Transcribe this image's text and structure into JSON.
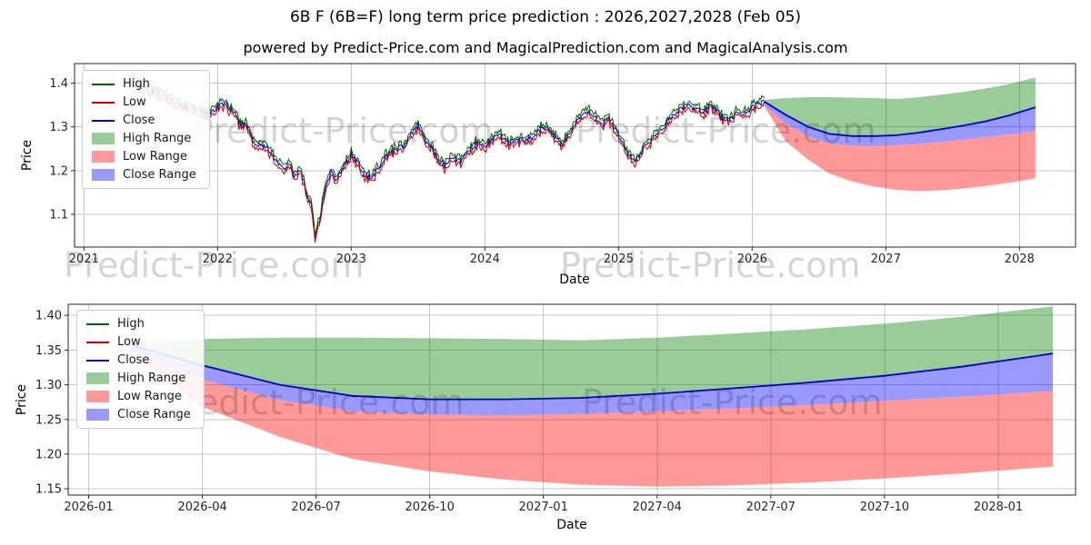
{
  "title": "6B F (6B=F) long term price prediction : 2026,2027,2028 (Feb 05)",
  "subtitle": "powered by Predict-Price.com and MagicalPrediction.com and MagicalAnalysis.com",
  "watermark": "Predict-Price.com",
  "colors": {
    "high": "#006400",
    "low": "#cc0000",
    "close": "#0000cd",
    "high_range": "rgba(0,128,0,0.4)",
    "low_range": "rgba(255,0,0,0.4)",
    "close_range": "rgba(0,0,255,0.4)",
    "grid": "#c6c6c6",
    "axis": "#262626"
  },
  "legend": [
    {
      "label": "High",
      "type": "line",
      "color": "high"
    },
    {
      "label": "Low",
      "type": "line",
      "color": "low"
    },
    {
      "label": "Close",
      "type": "line",
      "color": "close"
    },
    {
      "label": "High Range",
      "type": "patch",
      "color": "high_range"
    },
    {
      "label": "Low Range",
      "type": "patch",
      "color": "low_range"
    },
    {
      "label": "Close Range",
      "type": "patch",
      "color": "close_range"
    }
  ],
  "chart_data": [
    {
      "type": "line",
      "title": "",
      "xlabel": "Date",
      "ylabel": "Price",
      "grid": true,
      "legend_position": "upper left",
      "xlim": [
        2020.93,
        2028.42
      ],
      "ylim": [
        1.025,
        1.445
      ],
      "xticks": [
        2021,
        2022,
        2023,
        2024,
        2025,
        2026,
        2027,
        2028
      ],
      "xtick_labels": [
        "2021",
        "2022",
        "2023",
        "2024",
        "2025",
        "2026",
        "2027",
        "2028"
      ],
      "yticks": [
        1.1,
        1.2,
        1.3,
        1.4
      ],
      "ytick_labels": [
        "1.1",
        "1.2",
        "1.3",
        "1.4"
      ],
      "noise_amp": 0.012,
      "history_x": [
        2021.37,
        2021.42,
        2021.47,
        2021.53,
        2021.58,
        2021.64,
        2021.7,
        2021.76,
        2021.82,
        2021.88,
        2021.94,
        2022.0,
        2022.06,
        2022.11,
        2022.16,
        2022.22,
        2022.28,
        2022.33,
        2022.38,
        2022.44,
        2022.5,
        2022.54,
        2022.58,
        2022.62,
        2022.66,
        2022.7,
        2022.73,
        2022.77,
        2022.81,
        2022.85,
        2022.89,
        2022.94,
        2023.0,
        2023.05,
        2023.1,
        2023.15,
        2023.21,
        2023.27,
        2023.33,
        2023.39,
        2023.45,
        2023.5,
        2023.55,
        2023.6,
        2023.65,
        2023.7,
        2023.76,
        2023.82,
        2023.88,
        2023.94,
        2024.0,
        2024.06,
        2024.12,
        2024.18,
        2024.24,
        2024.3,
        2024.36,
        2024.42,
        2024.47,
        2024.52,
        2024.57,
        2024.62,
        2024.68,
        2024.73,
        2024.78,
        2024.83,
        2024.88,
        2024.93,
        2024.98,
        2025.03,
        2025.08,
        2025.13,
        2025.18,
        2025.24,
        2025.3,
        2025.36,
        2025.42,
        2025.48,
        2025.53,
        2025.58,
        2025.63,
        2025.68,
        2025.73,
        2025.78,
        2025.83,
        2025.88,
        2025.93,
        2025.98,
        2026.03,
        2026.09
      ],
      "history_close": [
        1.405,
        1.392,
        1.385,
        1.378,
        1.372,
        1.365,
        1.352,
        1.345,
        1.338,
        1.332,
        1.33,
        1.345,
        1.352,
        1.338,
        1.312,
        1.3,
        1.255,
        1.262,
        1.248,
        1.225,
        1.2,
        1.218,
        1.185,
        1.205,
        1.155,
        1.125,
        1.045,
        1.1,
        1.165,
        1.195,
        1.178,
        1.205,
        1.238,
        1.215,
        1.19,
        1.182,
        1.21,
        1.235,
        1.248,
        1.255,
        1.282,
        1.305,
        1.272,
        1.255,
        1.225,
        1.212,
        1.228,
        1.222,
        1.245,
        1.262,
        1.258,
        1.272,
        1.278,
        1.262,
        1.272,
        1.268,
        1.278,
        1.295,
        1.3,
        1.278,
        1.262,
        1.278,
        1.305,
        1.335,
        1.338,
        1.318,
        1.305,
        1.318,
        1.292,
        1.262,
        1.232,
        1.222,
        1.248,
        1.268,
        1.288,
        1.308,
        1.33,
        1.345,
        1.352,
        1.34,
        1.332,
        1.35,
        1.338,
        1.32,
        1.318,
        1.33,
        1.332,
        1.338,
        1.348,
        1.362
      ],
      "forecast": {
        "x": [
          2026.09,
          2026.25,
          2026.42,
          2026.58,
          2026.75,
          2026.92,
          2027.08,
          2027.25,
          2027.42,
          2027.58,
          2027.75,
          2027.92,
          2028.12
        ],
        "close": [
          1.358,
          1.328,
          1.3,
          1.284,
          1.279,
          1.279,
          1.281,
          1.287,
          1.295,
          1.303,
          1.313,
          1.326,
          1.345
        ],
        "close_lo": [
          1.35,
          1.308,
          1.278,
          1.262,
          1.257,
          1.256,
          1.258,
          1.262,
          1.266,
          1.271,
          1.277,
          1.283,
          1.291
        ],
        "high_top": [
          1.362,
          1.366,
          1.368,
          1.368,
          1.367,
          1.366,
          1.364,
          1.368,
          1.374,
          1.38,
          1.388,
          1.398,
          1.413
        ],
        "low_bot": [
          1.348,
          1.268,
          1.225,
          1.193,
          1.175,
          1.163,
          1.156,
          1.153,
          1.155,
          1.159,
          1.165,
          1.172,
          1.182
        ]
      }
    },
    {
      "type": "area",
      "title": "",
      "xlabel": "Date",
      "ylabel": "Price",
      "grid": true,
      "legend_position": "upper left",
      "xlim": [
        2025.955,
        2028.17
      ],
      "ylim": [
        1.141,
        1.416
      ],
      "xticks": [
        2026.0,
        2026.25,
        2026.5,
        2026.75,
        2027.0,
        2027.25,
        2027.5,
        2027.75,
        2028.0
      ],
      "xtick_labels": [
        "2026-01",
        "2026-04",
        "2026-07",
        "2026-10",
        "2027-01",
        "2027-04",
        "2027-07",
        "2027-10",
        "2028-01"
      ],
      "yticks": [
        1.15,
        1.2,
        1.25,
        1.3,
        1.35,
        1.4
      ],
      "ytick_labels": [
        "1.15",
        "1.20",
        "1.25",
        "1.30",
        "1.35",
        "1.40"
      ],
      "forecast": {
        "x": [
          2026.09,
          2026.25,
          2026.42,
          2026.58,
          2026.75,
          2026.92,
          2027.08,
          2027.25,
          2027.42,
          2027.58,
          2027.75,
          2027.92,
          2028.12
        ],
        "close": [
          1.358,
          1.328,
          1.3,
          1.284,
          1.279,
          1.279,
          1.281,
          1.287,
          1.295,
          1.303,
          1.313,
          1.326,
          1.345
        ],
        "close_lo": [
          1.35,
          1.308,
          1.278,
          1.262,
          1.257,
          1.256,
          1.258,
          1.262,
          1.266,
          1.271,
          1.277,
          1.283,
          1.291
        ],
        "high_top": [
          1.362,
          1.366,
          1.368,
          1.368,
          1.367,
          1.366,
          1.364,
          1.368,
          1.374,
          1.38,
          1.388,
          1.398,
          1.413
        ],
        "low_bot": [
          1.348,
          1.268,
          1.225,
          1.193,
          1.175,
          1.163,
          1.156,
          1.153,
          1.155,
          1.159,
          1.165,
          1.172,
          1.182
        ]
      }
    }
  ]
}
